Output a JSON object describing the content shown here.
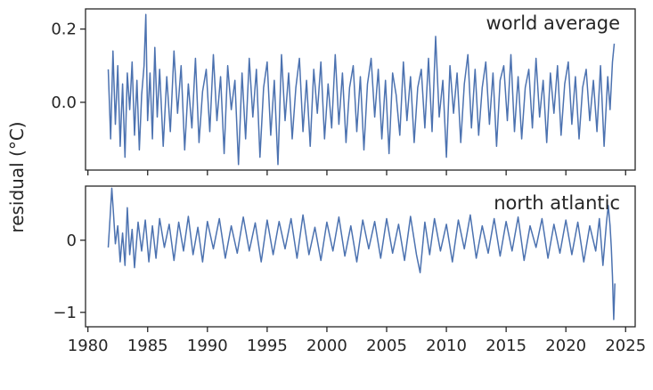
{
  "ylabel": "residual (°C)",
  "color_series": "#4c72b0",
  "chart_data": [
    {
      "type": "line",
      "panel_label": "world average",
      "xlim": [
        1979.8,
        2025.8
      ],
      "ylim": [
        -0.185,
        0.255
      ],
      "xticks": [
        1980,
        1985,
        1990,
        1995,
        2000,
        2005,
        2010,
        2015,
        2020,
        2025
      ],
      "xtick_labels": [],
      "yticks": [
        0.0,
        0.2
      ],
      "ytick_labels": [
        "0.0",
        "0.2"
      ],
      "grid": false,
      "series": [
        {
          "x": [
            1981.7,
            1981.9,
            1982.1,
            1982.3,
            1982.5,
            1982.7,
            1982.9,
            1983.1,
            1983.3,
            1983.5,
            1983.7,
            1983.9,
            1984.1,
            1984.3,
            1984.5,
            1984.7,
            1984.85,
            1985.0,
            1985.2,
            1985.4,
            1985.6,
            1985.8,
            1986.0,
            1986.3,
            1986.6,
            1986.9,
            1987.2,
            1987.5,
            1987.8,
            1988.1,
            1988.4,
            1988.7,
            1989.0,
            1989.3,
            1989.6,
            1989.9,
            1990.2,
            1990.5,
            1990.8,
            1991.1,
            1991.4,
            1991.7,
            1992.0,
            1992.3,
            1992.6,
            1992.9,
            1993.2,
            1993.5,
            1993.8,
            1994.1,
            1994.4,
            1994.7,
            1995.0,
            1995.3,
            1995.6,
            1995.9,
            1996.2,
            1996.5,
            1996.8,
            1997.1,
            1997.4,
            1997.7,
            1998.0,
            1998.3,
            1998.6,
            1998.9,
            1999.2,
            1999.5,
            1999.8,
            2000.1,
            2000.4,
            2000.7,
            2001.0,
            2001.3,
            2001.6,
            2001.9,
            2002.2,
            2002.5,
            2002.8,
            2003.1,
            2003.4,
            2003.7,
            2004.0,
            2004.3,
            2004.6,
            2004.9,
            2005.2,
            2005.5,
            2005.8,
            2006.1,
            2006.4,
            2006.7,
            2007.0,
            2007.3,
            2007.6,
            2007.9,
            2008.2,
            2008.5,
            2008.8,
            2009.1,
            2009.4,
            2009.7,
            2010.0,
            2010.3,
            2010.6,
            2010.9,
            2011.2,
            2011.5,
            2011.8,
            2012.1,
            2012.4,
            2012.7,
            2013.0,
            2013.3,
            2013.6,
            2013.9,
            2014.2,
            2014.5,
            2014.8,
            2015.1,
            2015.4,
            2015.7,
            2016.0,
            2016.3,
            2016.6,
            2016.9,
            2017.2,
            2017.5,
            2017.8,
            2018.1,
            2018.4,
            2018.7,
            2019.0,
            2019.3,
            2019.6,
            2019.9,
            2020.2,
            2020.5,
            2020.8,
            2021.1,
            2021.4,
            2021.7,
            2022.0,
            2022.3,
            2022.6,
            2022.9,
            2023.2,
            2023.5,
            2023.7,
            2023.9,
            2024.05
          ],
          "y": [
            0.09,
            -0.1,
            0.14,
            -0.06,
            0.1,
            -0.12,
            0.05,
            -0.15,
            0.08,
            -0.02,
            0.11,
            -0.09,
            0.06,
            -0.13,
            0.02,
            0.1,
            0.24,
            -0.05,
            0.08,
            -0.1,
            0.15,
            -0.04,
            0.09,
            -0.12,
            0.07,
            -0.08,
            0.14,
            -0.03,
            0.1,
            -0.13,
            0.05,
            -0.07,
            0.12,
            -0.11,
            0.03,
            0.09,
            -0.08,
            0.13,
            -0.05,
            0.07,
            -0.14,
            0.1,
            -0.02,
            0.06,
            -0.17,
            0.08,
            -0.1,
            0.12,
            -0.04,
            0.09,
            -0.15,
            0.04,
            0.11,
            -0.09,
            0.06,
            -0.17,
            0.13,
            -0.05,
            0.08,
            -0.1,
            0.04,
            0.12,
            -0.08,
            0.06,
            -0.12,
            0.09,
            -0.03,
            0.11,
            -0.1,
            0.05,
            -0.07,
            0.13,
            -0.06,
            0.08,
            -0.11,
            0.04,
            0.1,
            -0.08,
            0.07,
            -0.13,
            0.05,
            0.12,
            -0.04,
            0.09,
            -0.1,
            0.06,
            -0.14,
            0.08,
            0.02,
            -0.09,
            0.11,
            -0.05,
            0.07,
            -0.11,
            0.04,
            0.09,
            -0.07,
            0.12,
            -0.08,
            0.18,
            -0.04,
            0.06,
            -0.15,
            0.1,
            -0.03,
            0.08,
            -0.11,
            0.05,
            0.13,
            -0.07,
            0.09,
            -0.09,
            0.04,
            0.11,
            -0.06,
            0.08,
            -0.12,
            0.06,
            0.1,
            -0.05,
            0.13,
            -0.08,
            0.07,
            -0.1,
            0.04,
            0.09,
            -0.07,
            0.12,
            -0.04,
            0.06,
            -0.11,
            0.08,
            -0.03,
            0.1,
            -0.09,
            0.05,
            0.11,
            -0.06,
            0.07,
            -0.1,
            0.04,
            0.09,
            -0.05,
            0.06,
            -0.08,
            0.1,
            -0.12,
            0.07,
            -0.02,
            0.11,
            0.16
          ]
        }
      ]
    },
    {
      "type": "line",
      "panel_label": "north atlantic",
      "xlim": [
        1979.8,
        2025.8
      ],
      "ylim": [
        -1.2,
        0.75
      ],
      "xticks": [
        1980,
        1985,
        1990,
        1995,
        2000,
        2005,
        2010,
        2015,
        2020,
        2025
      ],
      "xtick_labels": [
        "1980",
        "1985",
        "1990",
        "1995",
        "2000",
        "2005",
        "2010",
        "2015",
        "2020",
        "2025"
      ],
      "yticks": [
        -1,
        0
      ],
      "ytick_labels": [
        "−1",
        "0"
      ],
      "grid": false,
      "series": [
        {
          "x": [
            1981.7,
            1981.85,
            1982.0,
            1982.15,
            1982.3,
            1982.5,
            1982.7,
            1982.9,
            1983.1,
            1983.3,
            1983.5,
            1983.7,
            1983.9,
            1984.2,
            1984.5,
            1984.8,
            1985.1,
            1985.4,
            1985.7,
            1986.0,
            1986.4,
            1986.8,
            1987.2,
            1987.6,
            1988.0,
            1988.4,
            1988.8,
            1989.2,
            1989.6,
            1990.0,
            1990.5,
            1991.0,
            1991.5,
            1992.0,
            1992.5,
            1993.0,
            1993.5,
            1994.0,
            1994.5,
            1995.0,
            1995.5,
            1996.0,
            1996.5,
            1997.0,
            1997.5,
            1998.0,
            1998.5,
            1999.0,
            1999.5,
            2000.0,
            2000.5,
            2001.0,
            2001.5,
            2002.0,
            2002.5,
            2003.0,
            2003.5,
            2004.0,
            2004.5,
            2005.0,
            2005.5,
            2006.0,
            2006.5,
            2007.0,
            2007.5,
            2007.8,
            2008.2,
            2008.6,
            2009.0,
            2009.5,
            2010.0,
            2010.5,
            2011.0,
            2011.5,
            2012.0,
            2012.5,
            2013.0,
            2013.5,
            2014.0,
            2014.5,
            2015.0,
            2015.5,
            2016.0,
            2016.5,
            2017.0,
            2017.5,
            2018.0,
            2018.5,
            2019.0,
            2019.5,
            2020.0,
            2020.5,
            2021.0,
            2021.5,
            2022.0,
            2022.5,
            2022.8,
            2023.1,
            2023.4,
            2023.55,
            2023.7,
            2023.8,
            2023.9,
            2024.0,
            2024.1
          ],
          "y": [
            -0.1,
            0.3,
            0.72,
            0.35,
            -0.05,
            0.2,
            -0.3,
            0.1,
            -0.35,
            0.45,
            -0.2,
            0.15,
            -0.38,
            0.25,
            -0.15,
            0.28,
            -0.3,
            0.2,
            -0.25,
            0.3,
            -0.1,
            0.22,
            -0.28,
            0.25,
            -0.15,
            0.33,
            -0.2,
            0.18,
            -0.3,
            0.26,
            -0.12,
            0.3,
            -0.25,
            0.2,
            -0.18,
            0.32,
            -0.15,
            0.24,
            -0.3,
            0.28,
            -0.2,
            0.26,
            -0.12,
            0.3,
            -0.25,
            0.35,
            -0.2,
            0.18,
            -0.28,
            0.25,
            -0.15,
            0.32,
            -0.22,
            0.2,
            -0.3,
            0.28,
            -0.12,
            0.26,
            -0.25,
            0.3,
            -0.18,
            0.22,
            -0.28,
            0.33,
            -0.2,
            -0.45,
            0.25,
            -0.2,
            0.3,
            -0.15,
            0.22,
            -0.3,
            0.28,
            -0.12,
            0.35,
            -0.25,
            0.2,
            -0.18,
            0.3,
            -0.22,
            0.26,
            -0.15,
            0.32,
            -0.28,
            0.2,
            -0.1,
            0.3,
            -0.25,
            0.22,
            -0.18,
            0.28,
            -0.2,
            0.25,
            -0.3,
            0.2,
            -0.15,
            0.3,
            -0.35,
            0.25,
            0.48,
            0.2,
            -0.1,
            -0.5,
            -1.1,
            -0.6
          ]
        }
      ]
    }
  ]
}
